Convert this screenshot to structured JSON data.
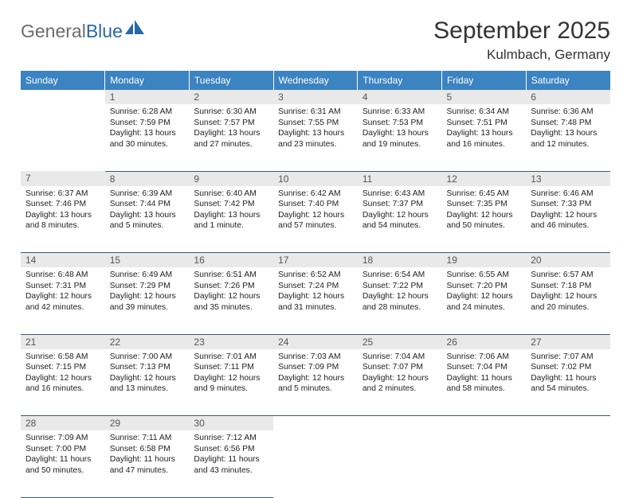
{
  "brand": {
    "part1": "General",
    "part2": "Blue"
  },
  "title": "September 2025",
  "location": "Kulmbach, Germany",
  "colors": {
    "header_bg": "#3b83c1",
    "header_text": "#ffffff",
    "daynum_bg": "#e9e9e9",
    "daynum_text": "#555555",
    "border": "#3b5a78",
    "brand_gray": "#6b6b6b",
    "brand_blue": "#2668a8",
    "body_text": "#222222",
    "page_bg": "#ffffff"
  },
  "day_headers": [
    "Sunday",
    "Monday",
    "Tuesday",
    "Wednesday",
    "Thursday",
    "Friday",
    "Saturday"
  ],
  "weeks": [
    {
      "nums": [
        "",
        "1",
        "2",
        "3",
        "4",
        "5",
        "6"
      ],
      "cells": [
        null,
        {
          "sr": "Sunrise: 6:28 AM",
          "ss": "Sunset: 7:59 PM",
          "d1": "Daylight: 13 hours",
          "d2": "and 30 minutes."
        },
        {
          "sr": "Sunrise: 6:30 AM",
          "ss": "Sunset: 7:57 PM",
          "d1": "Daylight: 13 hours",
          "d2": "and 27 minutes."
        },
        {
          "sr": "Sunrise: 6:31 AM",
          "ss": "Sunset: 7:55 PM",
          "d1": "Daylight: 13 hours",
          "d2": "and 23 minutes."
        },
        {
          "sr": "Sunrise: 6:33 AM",
          "ss": "Sunset: 7:53 PM",
          "d1": "Daylight: 13 hours",
          "d2": "and 19 minutes."
        },
        {
          "sr": "Sunrise: 6:34 AM",
          "ss": "Sunset: 7:51 PM",
          "d1": "Daylight: 13 hours",
          "d2": "and 16 minutes."
        },
        {
          "sr": "Sunrise: 6:36 AM",
          "ss": "Sunset: 7:48 PM",
          "d1": "Daylight: 13 hours",
          "d2": "and 12 minutes."
        }
      ]
    },
    {
      "nums": [
        "7",
        "8",
        "9",
        "10",
        "11",
        "12",
        "13"
      ],
      "cells": [
        {
          "sr": "Sunrise: 6:37 AM",
          "ss": "Sunset: 7:46 PM",
          "d1": "Daylight: 13 hours",
          "d2": "and 8 minutes."
        },
        {
          "sr": "Sunrise: 6:39 AM",
          "ss": "Sunset: 7:44 PM",
          "d1": "Daylight: 13 hours",
          "d2": "and 5 minutes."
        },
        {
          "sr": "Sunrise: 6:40 AM",
          "ss": "Sunset: 7:42 PM",
          "d1": "Daylight: 13 hours",
          "d2": "and 1 minute."
        },
        {
          "sr": "Sunrise: 6:42 AM",
          "ss": "Sunset: 7:40 PM",
          "d1": "Daylight: 12 hours",
          "d2": "and 57 minutes."
        },
        {
          "sr": "Sunrise: 6:43 AM",
          "ss": "Sunset: 7:37 PM",
          "d1": "Daylight: 12 hours",
          "d2": "and 54 minutes."
        },
        {
          "sr": "Sunrise: 6:45 AM",
          "ss": "Sunset: 7:35 PM",
          "d1": "Daylight: 12 hours",
          "d2": "and 50 minutes."
        },
        {
          "sr": "Sunrise: 6:46 AM",
          "ss": "Sunset: 7:33 PM",
          "d1": "Daylight: 12 hours",
          "d2": "and 46 minutes."
        }
      ]
    },
    {
      "nums": [
        "14",
        "15",
        "16",
        "17",
        "18",
        "19",
        "20"
      ],
      "cells": [
        {
          "sr": "Sunrise: 6:48 AM",
          "ss": "Sunset: 7:31 PM",
          "d1": "Daylight: 12 hours",
          "d2": "and 42 minutes."
        },
        {
          "sr": "Sunrise: 6:49 AM",
          "ss": "Sunset: 7:29 PM",
          "d1": "Daylight: 12 hours",
          "d2": "and 39 minutes."
        },
        {
          "sr": "Sunrise: 6:51 AM",
          "ss": "Sunset: 7:26 PM",
          "d1": "Daylight: 12 hours",
          "d2": "and 35 minutes."
        },
        {
          "sr": "Sunrise: 6:52 AM",
          "ss": "Sunset: 7:24 PM",
          "d1": "Daylight: 12 hours",
          "d2": "and 31 minutes."
        },
        {
          "sr": "Sunrise: 6:54 AM",
          "ss": "Sunset: 7:22 PM",
          "d1": "Daylight: 12 hours",
          "d2": "and 28 minutes."
        },
        {
          "sr": "Sunrise: 6:55 AM",
          "ss": "Sunset: 7:20 PM",
          "d1": "Daylight: 12 hours",
          "d2": "and 24 minutes."
        },
        {
          "sr": "Sunrise: 6:57 AM",
          "ss": "Sunset: 7:18 PM",
          "d1": "Daylight: 12 hours",
          "d2": "and 20 minutes."
        }
      ]
    },
    {
      "nums": [
        "21",
        "22",
        "23",
        "24",
        "25",
        "26",
        "27"
      ],
      "cells": [
        {
          "sr": "Sunrise: 6:58 AM",
          "ss": "Sunset: 7:15 PM",
          "d1": "Daylight: 12 hours",
          "d2": "and 16 minutes."
        },
        {
          "sr": "Sunrise: 7:00 AM",
          "ss": "Sunset: 7:13 PM",
          "d1": "Daylight: 12 hours",
          "d2": "and 13 minutes."
        },
        {
          "sr": "Sunrise: 7:01 AM",
          "ss": "Sunset: 7:11 PM",
          "d1": "Daylight: 12 hours",
          "d2": "and 9 minutes."
        },
        {
          "sr": "Sunrise: 7:03 AM",
          "ss": "Sunset: 7:09 PM",
          "d1": "Daylight: 12 hours",
          "d2": "and 5 minutes."
        },
        {
          "sr": "Sunrise: 7:04 AM",
          "ss": "Sunset: 7:07 PM",
          "d1": "Daylight: 12 hours",
          "d2": "and 2 minutes."
        },
        {
          "sr": "Sunrise: 7:06 AM",
          "ss": "Sunset: 7:04 PM",
          "d1": "Daylight: 11 hours",
          "d2": "and 58 minutes."
        },
        {
          "sr": "Sunrise: 7:07 AM",
          "ss": "Sunset: 7:02 PM",
          "d1": "Daylight: 11 hours",
          "d2": "and 54 minutes."
        }
      ]
    },
    {
      "nums": [
        "28",
        "29",
        "30",
        "",
        "",
        "",
        ""
      ],
      "cells": [
        {
          "sr": "Sunrise: 7:09 AM",
          "ss": "Sunset: 7:00 PM",
          "d1": "Daylight: 11 hours",
          "d2": "and 50 minutes."
        },
        {
          "sr": "Sunrise: 7:11 AM",
          "ss": "Sunset: 6:58 PM",
          "d1": "Daylight: 11 hours",
          "d2": "and 47 minutes."
        },
        {
          "sr": "Sunrise: 7:12 AM",
          "ss": "Sunset: 6:56 PM",
          "d1": "Daylight: 11 hours",
          "d2": "and 43 minutes."
        },
        null,
        null,
        null,
        null
      ]
    }
  ]
}
